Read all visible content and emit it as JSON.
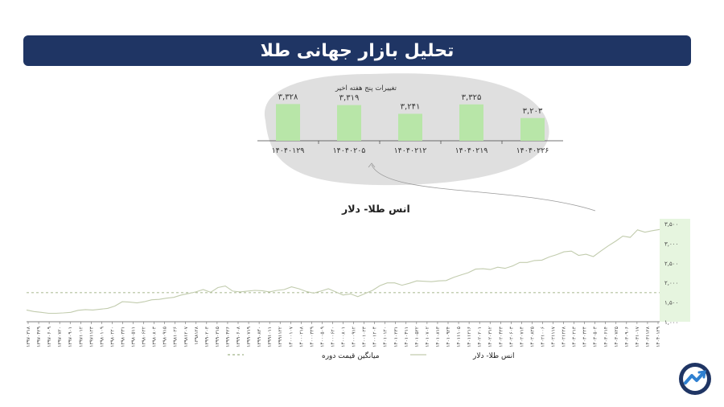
{
  "header": {
    "title": "تحلیل بازار جهانی طلا"
  },
  "chart_data": [
    {
      "type": "bar",
      "title": "تغییرات پنج هفته اخیر",
      "categories": [
        "۱۴۰۴۰۱۲۹",
        "۱۴۰۴۰۲۰۵",
        "۱۴۰۴۰۲۱۲",
        "۱۴۰۴۰۲۱۹",
        "۱۴۰۴۰۲۲۶"
      ],
      "values": [
        3328,
        3319,
        3241,
        3325,
        3203
      ],
      "value_labels": [
        "۳,۳۲۸",
        "۳,۳۱۹",
        "۳,۲۴۱",
        "۳,۳۲۵",
        "۳,۲۰۳"
      ],
      "bar_color": "#b8e6a8",
      "ylim": [
        3000,
        3400
      ]
    },
    {
      "type": "line",
      "title": "انس طلا- دلار",
      "ylim": [
        1000,
        3500
      ],
      "yticks": [
        1000,
        1500,
        2000,
        2500,
        3000,
        3500
      ],
      "ytick_labels": [
        "۱,۰۰۰",
        "۱,۵۰۰",
        "۲,۰۰۰",
        "۲,۵۰۰",
        "۳,۰۰۰",
        "۳,۵۰۰"
      ],
      "x_tick_labels": [
        "۱۳۹۷۰۳۱۸",
        "۱۳۹۷۰۴۲۹",
        "۱۳۹۷۰۶۰۹",
        "۱۳۹۷۰۷۲۰",
        "۱۳۹۷۰۹۰۱",
        "۱۳۹۷۱۰۱۲",
        "۱۳۹۷۱۱۲۳",
        "۱۳۹۸۰۱۰۹",
        "۱۳۹۸۰۲۲۰",
        "۱۳۹۸۰۳۳۱",
        "۱۳۹۸۰۵۱۱",
        "۱۳۹۸۰۶۲۲",
        "۱۳۹۸۰۸۰۳",
        "۱۳۹۸۰۹۱۵",
        "۱۳۹۸۱۰۲۶",
        "۱۳۹۸۱۲۰۷",
        "۱۳۹۸۱۲۸",
        "۱۳۹۹۰۲۰۳",
        "۱۳۹۹۰۳۱۵",
        "۱۳۹۹۰۴۲۶",
        "۱۳۹۹۰۶۰۸",
        "۱۳۹۹۰۷۱۹",
        "۱۳۹۹۰۸۳۰",
        "۱۳۹۹۱۰۱۱",
        "۱۳۹۹۱۱۲۲",
        "۱۴۰۰۰۱۰۷",
        "۱۴۰۰۰۲۱۸",
        "۱۴۰۰۰۳۲۹",
        "۱۴۰۰۰۵۰۹",
        "۱۴۰۰۰۶۲۰",
        "۱۴۰۰۰۸۰۱",
        "۱۴۰۰۰۹۱۲",
        "۱۴۰۰۱۰۲۳",
        "۱۴۰۰۱۲۰۴",
        "۱۴۰۱۰۱۲۰",
        "۱۴۰۱۰۲۳۱",
        "۱۴۰۱۰۴۱۱",
        "۱۴۰۱۰۵۲۲",
        "۱۴۰۱۰۷۰۲",
        "۱۴۰۱۰۸۱۳",
        "۱۴۰۱۰۹۲۴",
        "۱۴۰۱۱۱۰۵",
        "۱۴۰۱۱۲۱۶",
        "۱۴۰۲۰۲۰۱",
        "۱۴۰۲۰۳۱۲",
        "۱۴۰۲۰۴۲۳",
        "۱۴۰۲۰۶۰۳",
        "۱۴۰۲۰۷۱۴",
        "۱۴۰۲۰۸۲۵",
        "۱۴۰۲۱۰۰۶",
        "۱۴۰۲۱۱۱۷",
        "۱۴۰۲۱۲۲۸",
        "۱۴۰۳۰۲۱۳",
        "۱۴۰۳۰۳۲۴",
        "۱۴۰۳۰۵۰۳",
        "۱۴۰۳۰۶۱۴",
        "۱۴۰۳۰۷۲۵",
        "۱۴۰۳۰۹۰۶",
        "۱۴۰۳۱۰۱۷",
        "۱۴۰۳۱۱۲۸",
        "۱۴۰۴۰۱۲۹"
      ],
      "series": [
        {
          "name": "انس طلا- دلار",
          "style": "line",
          "values": [
            1300,
            1260,
            1240,
            1215,
            1215,
            1225,
            1240,
            1290,
            1310,
            1300,
            1320,
            1340,
            1400,
            1510,
            1500,
            1480,
            1510,
            1560,
            1570,
            1600,
            1620,
            1680,
            1720,
            1760,
            1820,
            1750,
            1870,
            1910,
            1780,
            1760,
            1780,
            1800,
            1790,
            1760,
            1800,
            1820,
            1890,
            1840,
            1770,
            1730,
            1780,
            1840,
            1760,
            1680,
            1710,
            1640,
            1720,
            1800,
            1920,
            1990,
            1990,
            1930,
            1980,
            2040,
            2030,
            2020,
            2040,
            2050,
            2130,
            2190,
            2250,
            2340,
            2350,
            2330,
            2390,
            2360,
            2420,
            2510,
            2510,
            2560,
            2570,
            2650,
            2710,
            2780,
            2800,
            2690,
            2720,
            2660,
            2800,
            2930,
            3050,
            3180,
            3150,
            3340,
            3280,
            3320,
            3350
          ]
        },
        {
          "name": "میانگین قیمت دوره",
          "style": "dashed",
          "constant": 1740
        }
      ],
      "highlight_color": "#e6f5df",
      "legend": "bottom"
    }
  ],
  "logo": {
    "name": "brand-logo"
  }
}
